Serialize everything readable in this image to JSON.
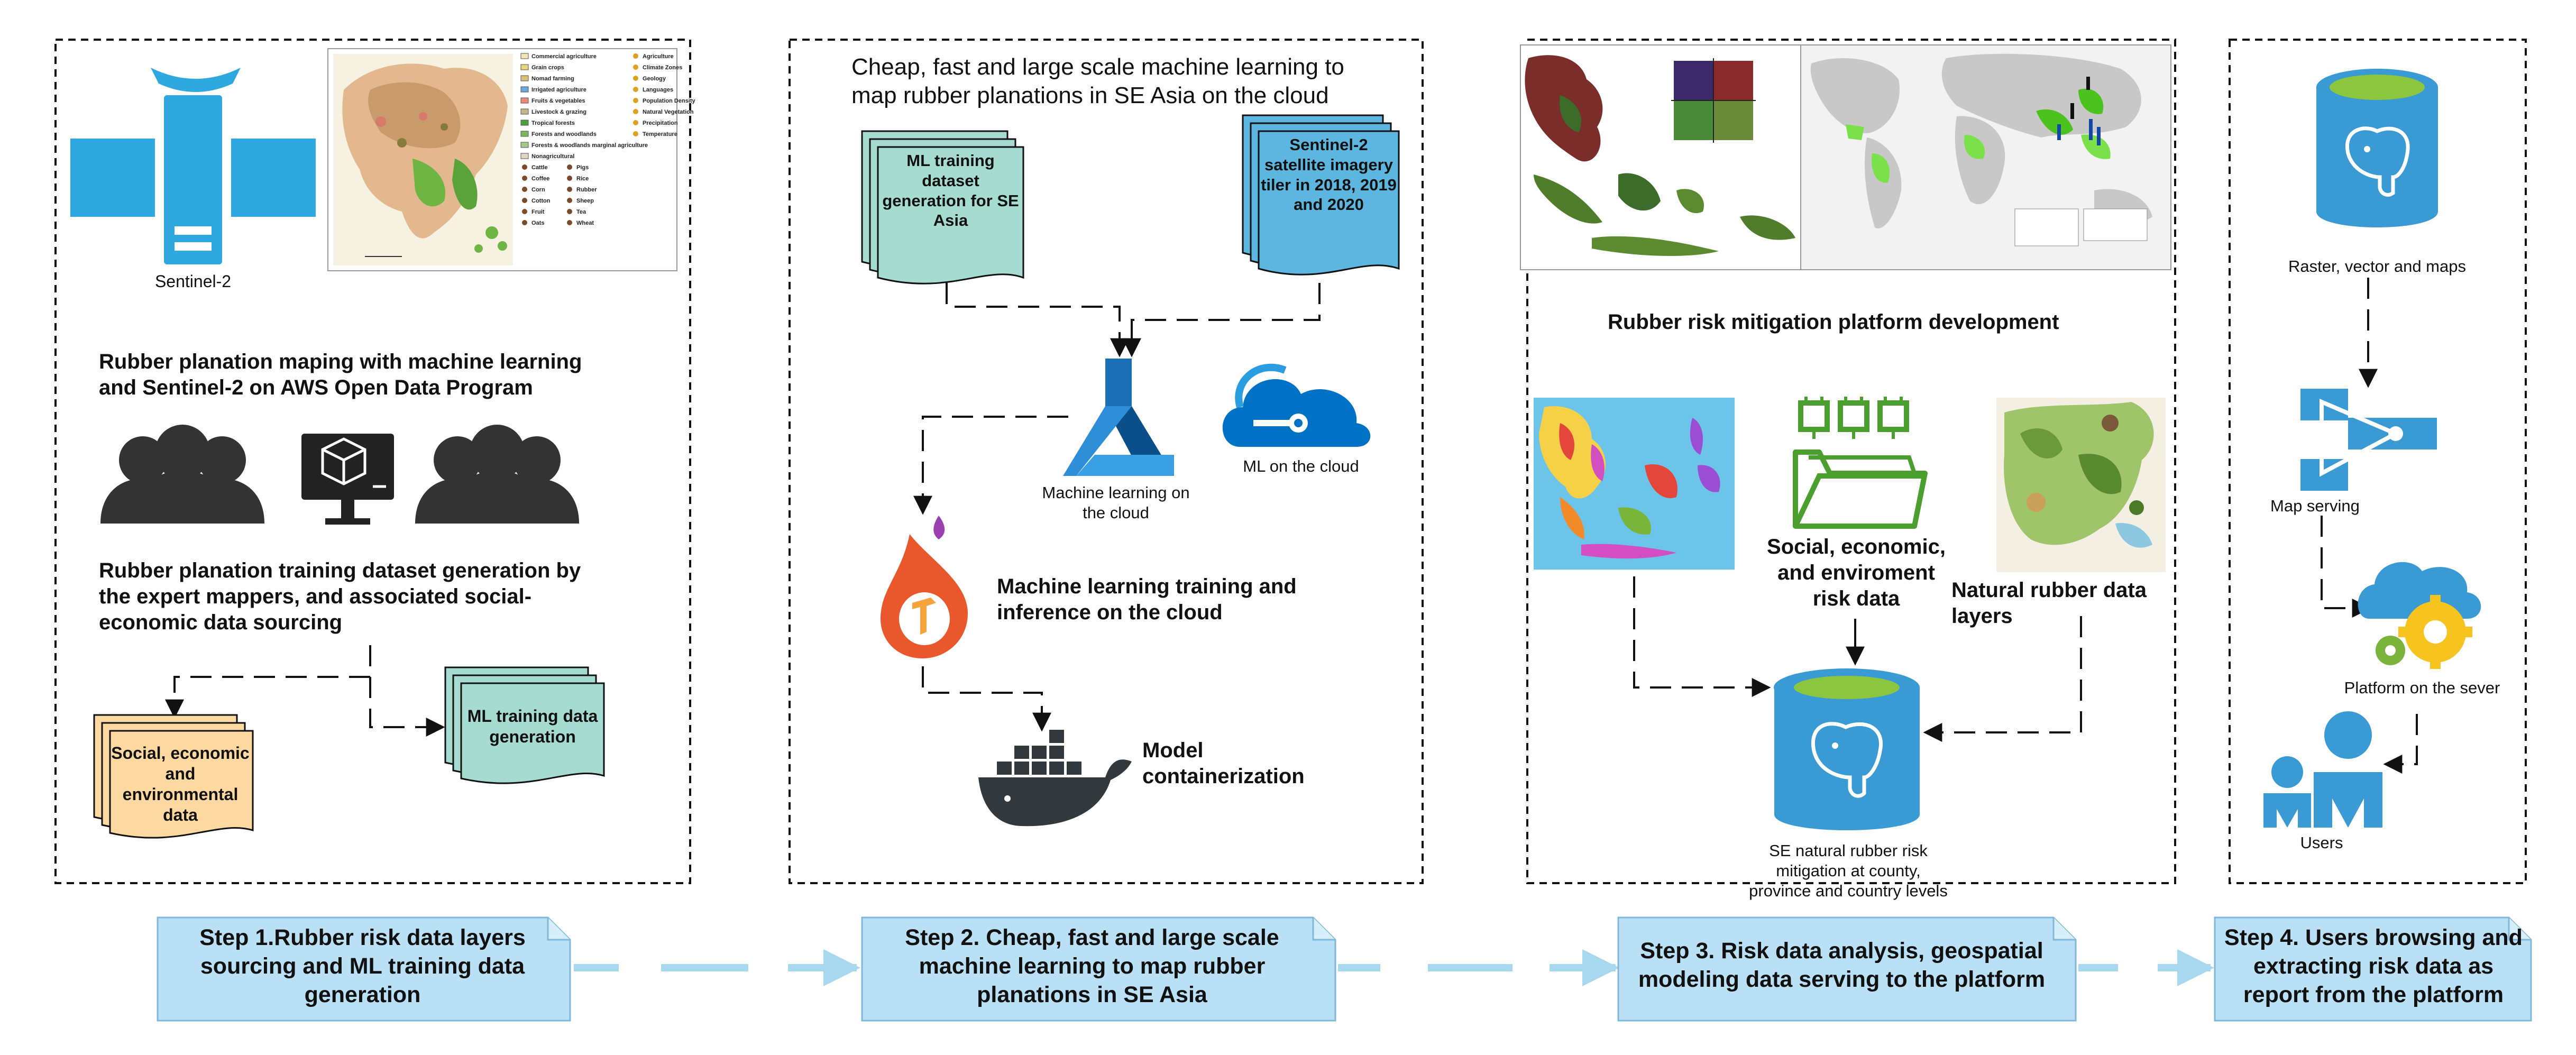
{
  "panel1": {
    "satellite_label": "Sentinel-2",
    "heading1": "Rubber planation maping with machine learning and Sentinel-2 on AWS Open Data Program",
    "heading2": "Rubber planation training dataset generation by the expert mappers, and associated social-economic data sourcing",
    "doc_social": "Social, economic and environmental data",
    "doc_ml": "ML training data generation",
    "map_legend": [
      "Commercial agriculture",
      "Grain crops",
      "Nomad farming",
      "Irrigated agriculture",
      "Fruits & vegetables",
      "Livestock & grazing",
      "Tropical forests",
      "Forests and woodlands",
      "Forests & woodlands marginal agriculture",
      "Nonagricultural",
      "Cattle",
      "Coffee",
      "Corn",
      "Cotton",
      "Fruit",
      "Oats",
      "Pigs",
      "Rice",
      "Rubber",
      "Sheep",
      "Tea",
      "Wheat",
      "Agriculture",
      "Climate Zones",
      "Geology",
      "Languages",
      "Population Density",
      "Natural Vegetation",
      "Precipitation",
      "Temperature"
    ]
  },
  "panel2": {
    "title": "Cheap, fast and large scale machine learning to map rubber planations in SE Asia on the cloud",
    "doc_ml_dataset": "ML training dataset generation for SE Asia",
    "doc_tiler": "Sentinel-2 satellite imagery tiler in 2018, 2019 and 2020",
    "azure_ml_label": "Machine learning on the cloud",
    "cloud_label": "ML on the cloud",
    "tf_label": "Machine learning training and inference on the cloud",
    "docker_label": "Model containerization"
  },
  "panel3": {
    "title": "Rubber risk mitigation platform development",
    "folder_label": "Social, economic, and enviroment risk data",
    "natural_label": "Natural rubber data layers",
    "db_label": "SE natural rubber risk mitigation at county, province and country levels"
  },
  "panel4": {
    "db_label": "Raster, vector and maps",
    "map_serving": "Map serving",
    "platform": "Platform on the sever",
    "users": "Users"
  },
  "steps": [
    "Step 1.Rubber risk data layers sourcing and ML training data generation",
    "Step 2.  Cheap, fast and large scale machine learning to map rubber planations in SE Asia",
    "Step 3. Risk data analysis, geospatial modeling data serving to the platform",
    "Step 4. Users browsing and extracting risk data as report from the platform"
  ],
  "colors": {
    "sat_blue": "#2fa8e0",
    "doc_green": "#a6dccf",
    "doc_orange": "#fdd8a0",
    "doc_blue": "#5db6e0",
    "step_fill": "#b9e0f5",
    "db_blue": "#3a9bd4",
    "db_top": "#8cc63f",
    "azure_blue": "#0072c6",
    "tf_orange": "#e8582c",
    "docker_dark": "#33383d",
    "people_gray": "#333333",
    "gear_yellow": "#f7c31f",
    "gear_green": "#7ab43a",
    "folder_green": "#4a9f2f"
  }
}
